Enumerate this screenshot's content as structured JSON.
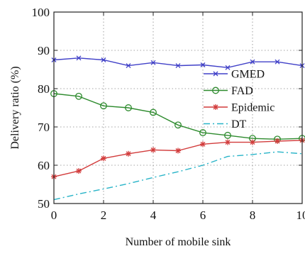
{
  "chart_data": {
    "type": "line",
    "title": "",
    "xlabel": "Number of mobile sink",
    "ylabel": "Delivery ratio (%)",
    "xlim": [
      0,
      10
    ],
    "ylim": [
      50,
      100
    ],
    "xticks": [
      0,
      2,
      4,
      6,
      8,
      10
    ],
    "yticks": [
      50,
      60,
      70,
      80,
      90,
      100
    ],
    "grid": true,
    "grid_style": "dotted",
    "legend_position": "right",
    "x": [
      0,
      1,
      2,
      3,
      4,
      5,
      6,
      7,
      8,
      9,
      10
    ],
    "series": [
      {
        "name": "GMED",
        "color": "#4040c8",
        "line_style": "solid",
        "marker": "x",
        "values": [
          87.5,
          88,
          87.5,
          86,
          86.8,
          86,
          86.2,
          85.5,
          87,
          87,
          86
        ]
      },
      {
        "name": "FAD",
        "color": "#2e8b2e",
        "line_style": "solid",
        "marker": "circle",
        "values": [
          78.7,
          78,
          75.5,
          75,
          73.8,
          70.5,
          68.5,
          67.8,
          67,
          66.8,
          67
        ]
      },
      {
        "name": "Epidemic",
        "color": "#d23c3c",
        "line_style": "solid",
        "marker": "star",
        "values": [
          57,
          58.5,
          61.8,
          63,
          64,
          63.8,
          65.5,
          66,
          66,
          66.3,
          66.5
        ]
      },
      {
        "name": "DT",
        "color": "#28b4c8",
        "line_style": "dash-dot",
        "marker": "none",
        "values": [
          51,
          52.5,
          53.8,
          55.2,
          56.8,
          58.3,
          60,
          62.3,
          62.8,
          63.5,
          63
        ]
      }
    ]
  }
}
